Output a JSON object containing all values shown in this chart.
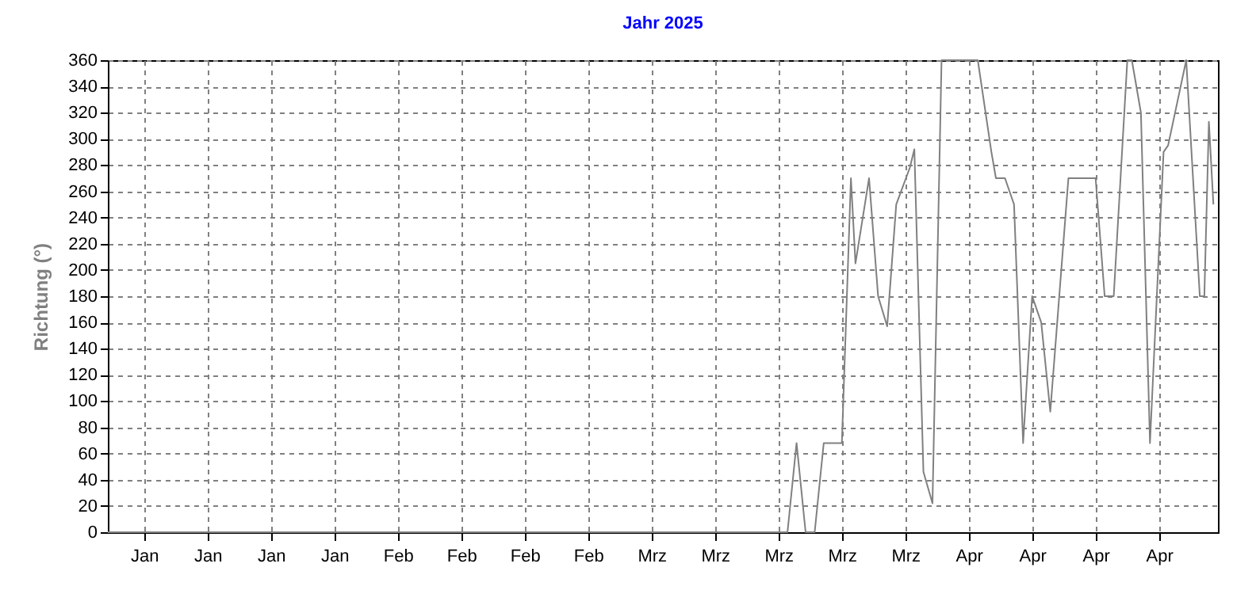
{
  "chart_data": {
    "type": "line",
    "title": "Jahr 2025",
    "ylabel": "Richtung (°)",
    "x": [
      "2025-01-01",
      "2025-03-17",
      "2025-03-18",
      "2025-03-19",
      "2025-03-20",
      "2025-03-21",
      "2025-03-23",
      "2025-03-24",
      "2025-03-24T12:00",
      "2025-03-26",
      "2025-03-27",
      "2025-03-28",
      "2025-03-29",
      "2025-03-30T12:00",
      "2025-03-31",
      "2025-04-01",
      "2025-04-02",
      "2025-04-03",
      "2025-04-07",
      "2025-04-08T12:00",
      "2025-04-09",
      "2025-04-10",
      "2025-04-11",
      "2025-04-12",
      "2025-04-13",
      "2025-04-14",
      "2025-04-15",
      "2025-04-17",
      "2025-04-20",
      "2025-04-21",
      "2025-04-22",
      "2025-04-23T12:00",
      "2025-04-24",
      "2025-04-25",
      "2025-04-26",
      "2025-04-27T12:00",
      "2025-04-28",
      "2025-04-30",
      "2025-05-01T12:00",
      "2025-05-02",
      "2025-05-02T12:00",
      "2025-05-03"
    ],
    "series": [
      {
        "color": "#808080",
        "values": [
          0,
          0,
          68,
          0,
          0,
          68,
          68,
          270,
          205,
          270,
          180,
          157,
          250,
          278,
          292,
          46,
          22,
          360,
          360,
          290,
          270,
          270,
          250,
          68,
          180,
          160,
          92,
          270,
          270,
          180,
          180,
          360,
          360,
          320,
          68,
          290,
          295,
          360,
          180,
          180,
          313,
          250
        ]
      }
    ],
    "xlim": [
      "2025-01-01",
      "2025-05-03T12:00"
    ],
    "xticks": [
      {
        "value": "2025-01-05",
        "label": "Jan"
      },
      {
        "value": "2025-01-12",
        "label": "Jan"
      },
      {
        "value": "2025-01-19",
        "label": "Jan"
      },
      {
        "value": "2025-01-26",
        "label": "Jan"
      },
      {
        "value": "2025-02-02",
        "label": "Feb"
      },
      {
        "value": "2025-02-09",
        "label": "Feb"
      },
      {
        "value": "2025-02-16",
        "label": "Feb"
      },
      {
        "value": "2025-02-23",
        "label": "Feb"
      },
      {
        "value": "2025-03-02",
        "label": "Mrz"
      },
      {
        "value": "2025-03-09",
        "label": "Mrz"
      },
      {
        "value": "2025-03-16",
        "label": "Mrz"
      },
      {
        "value": "2025-03-23",
        "label": "Mrz"
      },
      {
        "value": "2025-03-30",
        "label": "Mrz"
      },
      {
        "value": "2025-04-06",
        "label": "Apr"
      },
      {
        "value": "2025-04-13",
        "label": "Apr"
      },
      {
        "value": "2025-04-20",
        "label": "Apr"
      },
      {
        "value": "2025-04-27",
        "label": "Apr"
      }
    ],
    "ylim": [
      0,
      360
    ],
    "yticks": [
      0,
      20,
      40,
      60,
      80,
      100,
      120,
      140,
      160,
      180,
      200,
      220,
      240,
      260,
      280,
      300,
      320,
      340,
      360
    ],
    "grid": true,
    "marker": "none",
    "line_style": "solid",
    "legend": false
  }
}
